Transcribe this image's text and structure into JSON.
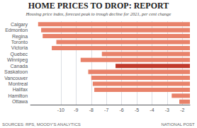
{
  "chart_data": {
    "type": "bar",
    "orientation": "horizontal",
    "title": "HOME PRICES TO DROP: REPORT",
    "subtitle": "Housing price index, forecast peak to trough decline for 2021, per cent change",
    "annotations": [
      "SOURCES: RPS, MOODY'S ANALYTICS",
      "NATIONAL POST"
    ],
    "categories": [
      "Ottawa",
      "Hamilton",
      "Halifax",
      "Montreal",
      "Vancouver",
      "Saskatoon",
      "Canada",
      "Winnipeg",
      "Quebec",
      "Victoria",
      "Toronto",
      "Regina",
      "Edmonton",
      "Calgary"
    ],
    "values": [
      -2.2,
      -2.7,
      -7.8,
      -7.9,
      -8.0,
      -8.2,
      -6.4,
      -8.7,
      -7.3,
      -10.6,
      -10.3,
      -11.2,
      -11.3,
      -11.5
    ],
    "colors": [
      "#e8826a",
      "#e8826a",
      "#e8826a",
      "#e8826a",
      "#e8826a",
      "#e8826a",
      "#c0392b",
      "#e8826a",
      "#e8826a",
      "#e8826a",
      "#e8826a",
      "#e8826a",
      "#e8826a",
      "#e8826a"
    ],
    "xlim": [
      -12,
      -1.5
    ],
    "xticks": [
      -10,
      -9,
      -8,
      -7,
      -6,
      -5,
      -4,
      -3,
      -2
    ],
    "grid": true
  }
}
